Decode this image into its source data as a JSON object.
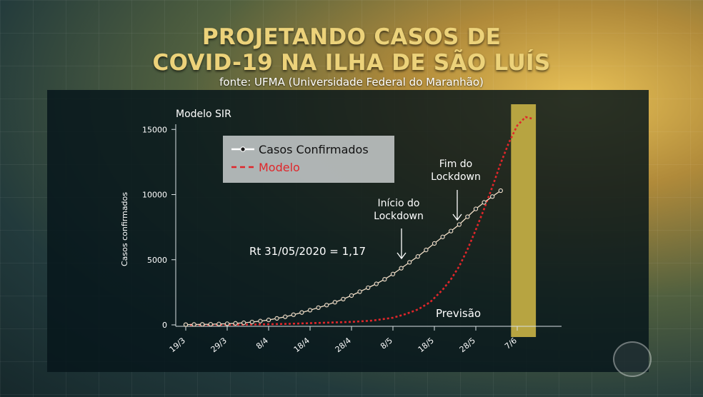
{
  "title_line1": "PROJETANDO CASOS DE",
  "title_line2": "COVID-19 NA ILHA DE SÃO LUÍS",
  "source": "fonte: UFMA (Universidade Federal do Maranhão)",
  "chart_data": {
    "type": "line",
    "title": "Modelo SIR",
    "ylabel": "Casos confirmados",
    "xlabel": "",
    "ylim": [
      0,
      16000
    ],
    "yticks": [
      0,
      5000,
      10000,
      15000
    ],
    "xtick_labels": [
      "19/3",
      "29/3",
      "8/4",
      "18/4",
      "28/4",
      "8/5",
      "18/5",
      "28/5",
      "7/6"
    ],
    "x_start": "19/3",
    "legend": {
      "placement": "top-left",
      "entries": [
        "Casos Confirmados",
        "Modelo"
      ]
    },
    "series": [
      {
        "name": "Casos Confirmados",
        "style": "line-with-markers",
        "color": "#f2dfc8",
        "x": [
          0,
          2,
          4,
          6,
          8,
          10,
          12,
          14,
          16,
          18,
          20,
          22,
          24,
          26,
          28,
          30,
          32,
          34,
          36,
          38,
          40,
          42,
          44,
          46,
          48,
          50,
          52,
          54,
          56,
          58,
          60,
          62,
          64,
          66,
          68,
          70,
          72,
          74,
          76
        ],
        "values": [
          20,
          30,
          40,
          50,
          70,
          90,
          120,
          160,
          220,
          290,
          380,
          500,
          620,
          780,
          950,
          1130,
          1320,
          1520,
          1740,
          1980,
          2250,
          2550,
          2850,
          3150,
          3500,
          3900,
          4350,
          4800,
          5250,
          5750,
          6250,
          6750,
          7200,
          7700,
          8300,
          8900,
          9400,
          9850,
          10300
        ]
      },
      {
        "name": "Modelo",
        "style": "dashed",
        "color": "#e0262a",
        "x": [
          0,
          5,
          10,
          15,
          20,
          25,
          30,
          35,
          40,
          45,
          50,
          53,
          56,
          59,
          62,
          64,
          66,
          68,
          70,
          72,
          74,
          76,
          78,
          80,
          82,
          84
        ],
        "values": [
          0,
          5,
          15,
          30,
          50,
          80,
          130,
          180,
          230,
          330,
          550,
          820,
          1180,
          1750,
          2700,
          3500,
          4500,
          5800,
          7300,
          8900,
          10600,
          12400,
          14000,
          15300,
          15950,
          15800
        ]
      }
    ],
    "annotations": [
      {
        "text": "Rt 31/05/2020 = 1,17"
      },
      {
        "text_line1": "Início do",
        "text_line2": "Lockdown",
        "arrow": "down",
        "at_x": 51
      },
      {
        "text_line1": "Fim do",
        "text_line2": "Lockdown",
        "arrow": "down",
        "at_x": 60
      },
      {
        "text": "Previsão"
      }
    ],
    "forecast_region": {
      "color": "#b7a441",
      "x_from": 78.5,
      "x_to": 84.5
    }
  }
}
